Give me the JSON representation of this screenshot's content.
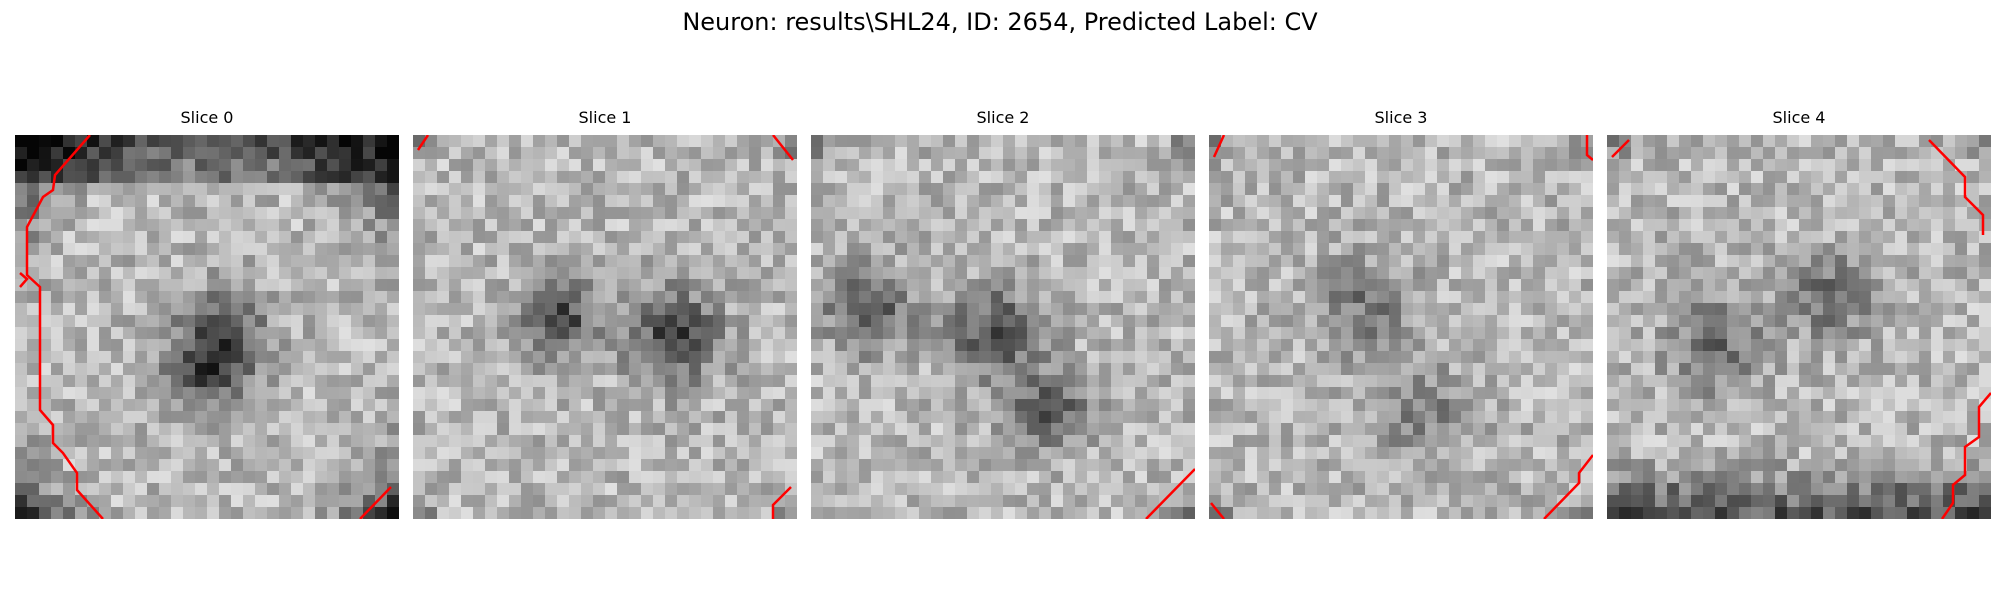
{
  "figure": {
    "title": "Neuron: results\\SHL24, ID: 2654, Predicted Label: CV"
  },
  "slices": [
    {
      "title": "Slice 0",
      "seed": 11,
      "dark_blob": true,
      "blob_strength": 0.35,
      "bright_ring": true
    },
    {
      "title": "Slice 1",
      "seed": 23,
      "dark_blob": true,
      "blob_strength": 0.45,
      "bright_ring": false
    },
    {
      "title": "Slice 2",
      "seed": 37,
      "dark_blob": true,
      "blob_strength": 0.4,
      "bright_ring": false
    },
    {
      "title": "Slice 3",
      "seed": 51,
      "dark_blob": true,
      "blob_strength": 0.25,
      "bright_ring": false
    },
    {
      "title": "Slice 4",
      "seed": 67,
      "dark_blob": true,
      "blob_strength": 0.3,
      "bright_ring": false
    }
  ],
  "contour_color": "#ff0000",
  "colormap": "gray"
}
